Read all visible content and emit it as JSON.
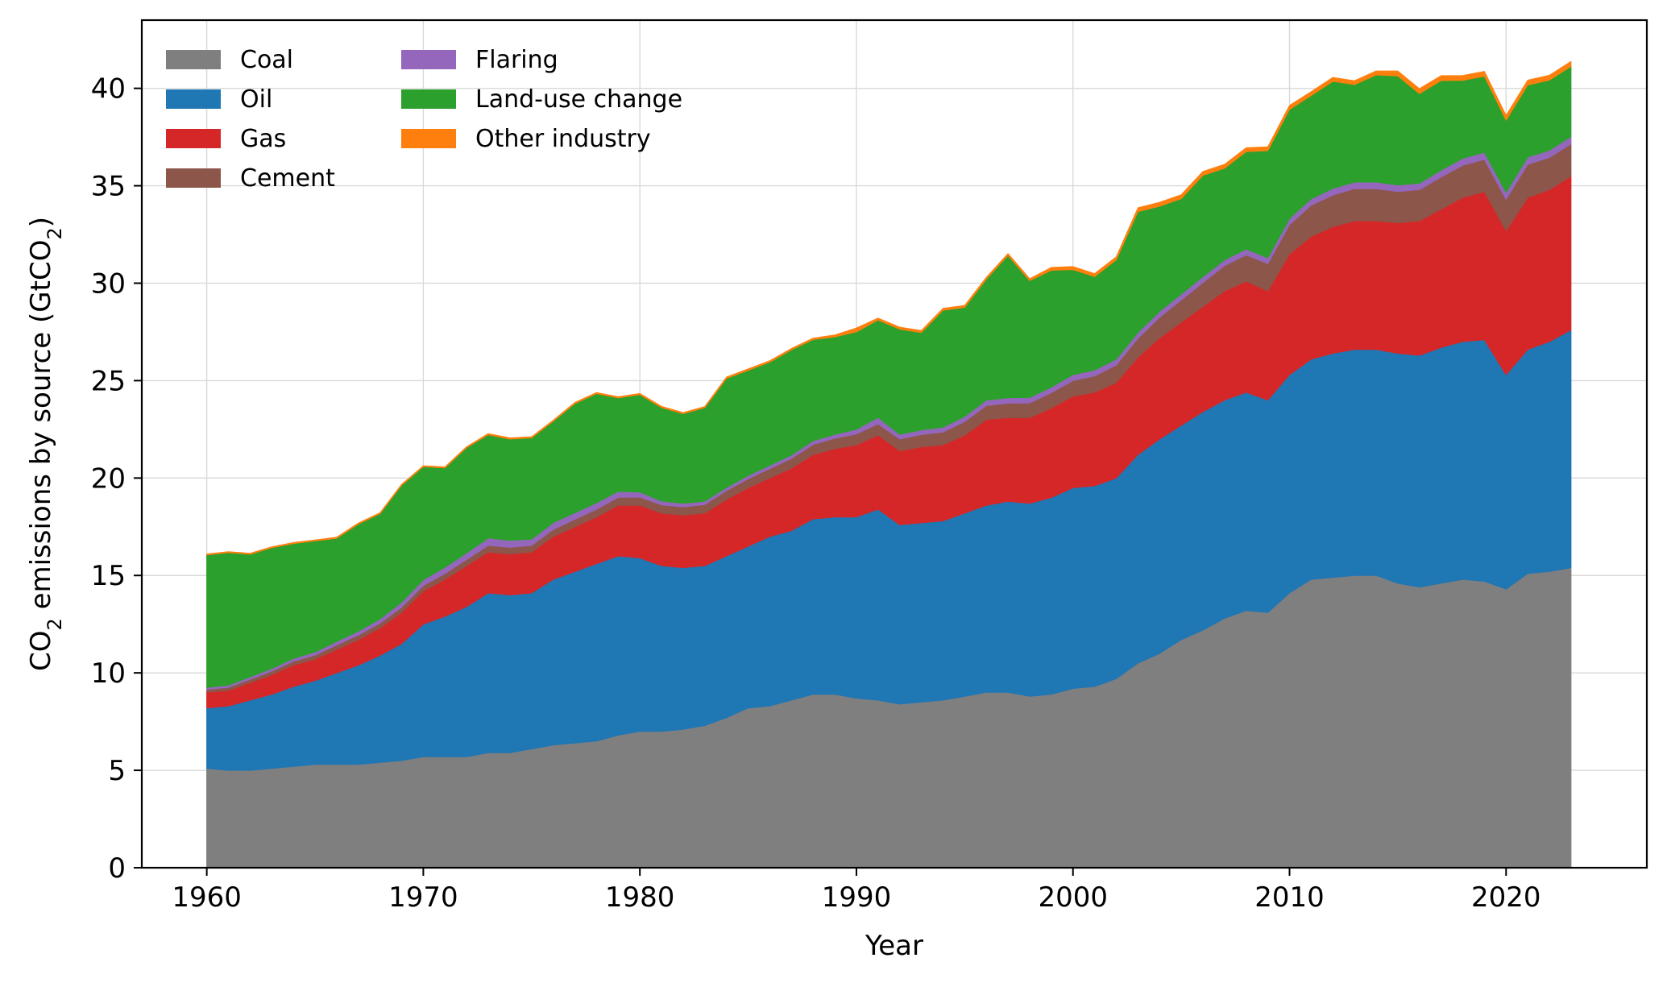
{
  "chart_data": {
    "type": "area",
    "stacked": true,
    "xlabel": "Year",
    "ylabel": {
      "prefix": "CO",
      "sub1": "2",
      "middle": " emissions by source (GtCO",
      "sub2": "2",
      "suffix": ")"
    },
    "xlim": [
      1957,
      2026.5
    ],
    "ylim": [
      0,
      43.5
    ],
    "xticks": [
      1960,
      1970,
      1980,
      1990,
      2000,
      2010,
      2020
    ],
    "yticks": [
      0,
      5,
      10,
      15,
      20,
      25,
      30,
      35,
      40
    ],
    "grid": true,
    "legend": {
      "placement": "top-left",
      "columns": 2
    },
    "x": [
      1960,
      1961,
      1962,
      1963,
      1964,
      1965,
      1966,
      1967,
      1968,
      1969,
      1970,
      1971,
      1972,
      1973,
      1974,
      1975,
      1976,
      1977,
      1978,
      1979,
      1980,
      1981,
      1982,
      1983,
      1984,
      1985,
      1986,
      1987,
      1988,
      1989,
      1990,
      1991,
      1992,
      1993,
      1994,
      1995,
      1996,
      1997,
      1998,
      1999,
      2000,
      2001,
      2002,
      2003,
      2004,
      2005,
      2006,
      2007,
      2008,
      2009,
      2010,
      2011,
      2012,
      2013,
      2014,
      2015,
      2016,
      2017,
      2018,
      2019,
      2020,
      2021,
      2022,
      2023
    ],
    "series": [
      {
        "name": "Coal",
        "color": "#7f7f7f",
        "values": [
          5.1,
          5.0,
          5.0,
          5.1,
          5.2,
          5.3,
          5.3,
          5.3,
          5.4,
          5.5,
          5.7,
          5.7,
          5.7,
          5.9,
          5.9,
          6.1,
          6.3,
          6.4,
          6.5,
          6.8,
          7.0,
          7.0,
          7.1,
          7.3,
          7.7,
          8.2,
          8.3,
          8.6,
          8.9,
          8.9,
          8.7,
          8.6,
          8.4,
          8.5,
          8.6,
          8.8,
          9.0,
          9.0,
          8.8,
          8.9,
          9.2,
          9.3,
          9.7,
          10.5,
          11.0,
          11.7,
          12.2,
          12.8,
          13.2,
          13.1,
          14.1,
          14.8,
          14.9,
          15.0,
          15.0,
          14.6,
          14.4,
          14.6,
          14.8,
          14.7,
          14.3,
          15.1,
          15.2,
          15.4
        ]
      },
      {
        "name": "Oil",
        "color": "#1f77b4",
        "values": [
          3.1,
          3.3,
          3.6,
          3.8,
          4.1,
          4.3,
          4.7,
          5.1,
          5.5,
          6.0,
          6.8,
          7.2,
          7.7,
          8.2,
          8.1,
          8.0,
          8.5,
          8.8,
          9.1,
          9.2,
          8.9,
          8.5,
          8.3,
          8.2,
          8.3,
          8.3,
          8.7,
          8.7,
          9.0,
          9.1,
          9.3,
          9.8,
          9.2,
          9.2,
          9.2,
          9.4,
          9.6,
          9.8,
          9.9,
          10.1,
          10.3,
          10.3,
          10.3,
          10.7,
          11.0,
          11.0,
          11.2,
          11.2,
          11.2,
          10.9,
          11.2,
          11.3,
          11.5,
          11.6,
          11.6,
          11.8,
          11.9,
          12.1,
          12.2,
          12.4,
          11.0,
          11.5,
          11.8,
          12.2
        ]
      },
      {
        "name": "Gas",
        "color": "#d62728",
        "values": [
          0.8,
          0.8,
          0.9,
          1.0,
          1.1,
          1.1,
          1.2,
          1.3,
          1.4,
          1.6,
          1.7,
          1.9,
          2.1,
          2.1,
          2.1,
          2.1,
          2.2,
          2.3,
          2.4,
          2.6,
          2.7,
          2.7,
          2.7,
          2.7,
          2.9,
          3.0,
          3.0,
          3.2,
          3.3,
          3.5,
          3.7,
          3.8,
          3.8,
          3.9,
          3.9,
          4.0,
          4.4,
          4.3,
          4.4,
          4.6,
          4.7,
          4.8,
          4.9,
          5.0,
          5.2,
          5.3,
          5.4,
          5.6,
          5.7,
          5.6,
          6.2,
          6.3,
          6.5,
          6.6,
          6.6,
          6.7,
          6.9,
          7.1,
          7.4,
          7.6,
          7.4,
          7.8,
          7.8,
          7.9
        ]
      },
      {
        "name": "Cement",
        "color": "#8c564b",
        "values": [
          0.15,
          0.16,
          0.17,
          0.19,
          0.2,
          0.21,
          0.23,
          0.24,
          0.25,
          0.27,
          0.28,
          0.3,
          0.32,
          0.34,
          0.34,
          0.34,
          0.36,
          0.38,
          0.4,
          0.41,
          0.42,
          0.42,
          0.42,
          0.44,
          0.45,
          0.46,
          0.48,
          0.5,
          0.52,
          0.54,
          0.56,
          0.58,
          0.6,
          0.63,
          0.66,
          0.7,
          0.72,
          0.74,
          0.75,
          0.78,
          0.8,
          0.84,
          0.9,
          0.97,
          1.05,
          1.14,
          1.23,
          1.3,
          1.35,
          1.4,
          1.5,
          1.6,
          1.62,
          1.65,
          1.65,
          1.6,
          1.6,
          1.65,
          1.65,
          1.65,
          1.6,
          1.7,
          1.65,
          1.65
        ]
      },
      {
        "name": "Flaring",
        "color": "#9467bd",
        "values": [
          0.1,
          0.11,
          0.12,
          0.13,
          0.14,
          0.16,
          0.18,
          0.2,
          0.22,
          0.26,
          0.3,
          0.32,
          0.34,
          0.38,
          0.36,
          0.32,
          0.35,
          0.34,
          0.33,
          0.3,
          0.26,
          0.2,
          0.18,
          0.17,
          0.16,
          0.17,
          0.17,
          0.18,
          0.19,
          0.2,
          0.24,
          0.33,
          0.24,
          0.24,
          0.25,
          0.26,
          0.28,
          0.28,
          0.28,
          0.28,
          0.3,
          0.3,
          0.3,
          0.3,
          0.3,
          0.3,
          0.3,
          0.3,
          0.3,
          0.3,
          0.32,
          0.33,
          0.34,
          0.34,
          0.34,
          0.34,
          0.33,
          0.35,
          0.36,
          0.37,
          0.36,
          0.37,
          0.37,
          0.38
        ]
      },
      {
        "name": "Land-use change",
        "color": "#2ca02c",
        "values": [
          6.8,
          6.8,
          6.3,
          6.2,
          5.9,
          5.7,
          5.3,
          5.5,
          5.4,
          6.0,
          5.8,
          5.1,
          5.4,
          5.3,
          5.2,
          5.2,
          5.2,
          5.6,
          5.6,
          4.8,
          5.0,
          4.8,
          4.6,
          4.8,
          5.6,
          5.4,
          5.3,
          5.4,
          5.2,
          5.0,
          5.0,
          5.0,
          5.4,
          5.0,
          6.0,
          5.6,
          6.2,
          7.3,
          6.0,
          6.0,
          5.4,
          4.8,
          5.1,
          6.2,
          5.4,
          4.9,
          5.2,
          4.7,
          5.0,
          5.5,
          5.6,
          5.3,
          5.5,
          5.0,
          5.5,
          5.6,
          4.6,
          4.6,
          4.0,
          3.9,
          3.7,
          3.7,
          3.6,
          3.6
        ]
      },
      {
        "name": "Other industry",
        "color": "#ff7f0e",
        "values": [
          0.05,
          0.05,
          0.05,
          0.05,
          0.05,
          0.05,
          0.05,
          0.05,
          0.05,
          0.05,
          0.05,
          0.05,
          0.05,
          0.06,
          0.06,
          0.06,
          0.06,
          0.06,
          0.06,
          0.06,
          0.06,
          0.06,
          0.06,
          0.06,
          0.07,
          0.07,
          0.07,
          0.07,
          0.07,
          0.1,
          0.2,
          0.1,
          0.1,
          0.1,
          0.1,
          0.1,
          0.1,
          0.1,
          0.1,
          0.15,
          0.15,
          0.15,
          0.15,
          0.2,
          0.2,
          0.2,
          0.2,
          0.2,
          0.2,
          0.2,
          0.2,
          0.2,
          0.2,
          0.2,
          0.2,
          0.25,
          0.25,
          0.25,
          0.25,
          0.25,
          0.25,
          0.25,
          0.25,
          0.25
        ]
      }
    ]
  }
}
